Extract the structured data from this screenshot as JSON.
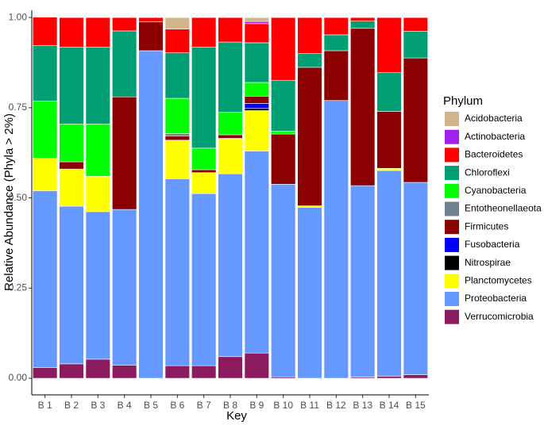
{
  "chart_data": {
    "type": "bar",
    "stacked": true,
    "x_label": "Key",
    "y_label": "Relative Abundance (Phyla > 2%)",
    "legend_title": "Phylum",
    "categories": [
      "B 1",
      "B 2",
      "B 3",
      "B 4",
      "B 5",
      "B 6",
      "B 7",
      "B 8",
      "B 9",
      "B 10",
      "B 11",
      "B 12",
      "B 13",
      "B 14",
      "B 15"
    ],
    "ylim": [
      -0.046,
      1.02
    ],
    "yticks": [
      {
        "value": 0,
        "label": "0.00"
      },
      {
        "value": 0.25,
        "label": "0.25"
      },
      {
        "value": 0.5,
        "label": "0.50"
      },
      {
        "value": 0.75,
        "label": "0.75"
      },
      {
        "value": 1,
        "label": "1.00"
      }
    ],
    "series": [
      {
        "name": "Acidobacteria",
        "color": "#d2b48c",
        "values": [
          0,
          0,
          0,
          0,
          0,
          0.032,
          0,
          0,
          0.011,
          0,
          0,
          0,
          0,
          0,
          0
        ]
      },
      {
        "name": "Actinobacteria",
        "color": "#a020f0",
        "values": [
          0,
          0,
          0,
          0,
          0,
          0,
          0,
          0,
          0.006,
          0,
          0,
          0,
          0,
          0,
          0
        ]
      },
      {
        "name": "Bacteroidetes",
        "color": "#ff0000",
        "values": [
          0.079,
          0.082,
          0.082,
          0.037,
          0.012,
          0.066,
          0.082,
          0.068,
          0.053,
          0.174,
          0.1,
          0.048,
          0.01,
          0.153,
          0.038
        ]
      },
      {
        "name": "Chloroflexi",
        "color": "#009e73",
        "values": [
          0.154,
          0.213,
          0.213,
          0.183,
          0,
          0.126,
          0.28,
          0.195,
          0.11,
          0.141,
          0.038,
          0.044,
          0.02,
          0.107,
          0.074
        ]
      },
      {
        "name": "Cyanobacteria",
        "color": "#00ff00",
        "values": [
          0.158,
          0.105,
          0.145,
          0,
          0,
          0.098,
          0.06,
          0.062,
          0.038,
          0.008,
          0,
          0,
          0,
          0,
          0
        ]
      },
      {
        "name": "Entotheonellaeota",
        "color": "#708090",
        "values": [
          0,
          0,
          0,
          0,
          0,
          0.006,
          0,
          0,
          0,
          0,
          0,
          0,
          0,
          0,
          0
        ]
      },
      {
        "name": "Firmicutes",
        "color": "#8b0000",
        "values": [
          0,
          0.02,
          0,
          0.312,
          0.08,
          0.012,
          0.008,
          0.01,
          0.02,
          0.139,
          0.384,
          0.138,
          0.436,
          0.158,
          0.345
        ]
      },
      {
        "name": "Fusobacteria",
        "color": "#0000ff",
        "values": [
          0,
          0,
          0,
          0,
          0,
          0,
          0,
          0,
          0.014,
          0,
          0,
          0,
          0,
          0,
          0
        ]
      },
      {
        "name": "Nitrospirae",
        "color": "#000000",
        "values": [
          0,
          0,
          0,
          0,
          0,
          0,
          0,
          0,
          0.006,
          0,
          0,
          0,
          0,
          0,
          0
        ]
      },
      {
        "name": "Planctomycetes",
        "color": "#ffff00",
        "values": [
          0.09,
          0.103,
          0.098,
          0,
          0,
          0.107,
          0.058,
          0.098,
          0.112,
          0,
          0.004,
          0,
          0,
          0.006,
          0
        ]
      },
      {
        "name": "Proteobacteria",
        "color": "#6699ff",
        "values": [
          0.49,
          0.437,
          0.409,
          0.432,
          0.908,
          0.518,
          0.477,
          0.507,
          0.56,
          0.534,
          0.474,
          0.77,
          0.531,
          0.57,
          0.533
        ]
      },
      {
        "name": "Verrucomicrobia",
        "color": "#8b1a5f",
        "values": [
          0.03,
          0.04,
          0.053,
          0.036,
          0,
          0.035,
          0.035,
          0.06,
          0.07,
          0.004,
          0,
          0,
          0.003,
          0.006,
          0.01
        ]
      }
    ]
  }
}
